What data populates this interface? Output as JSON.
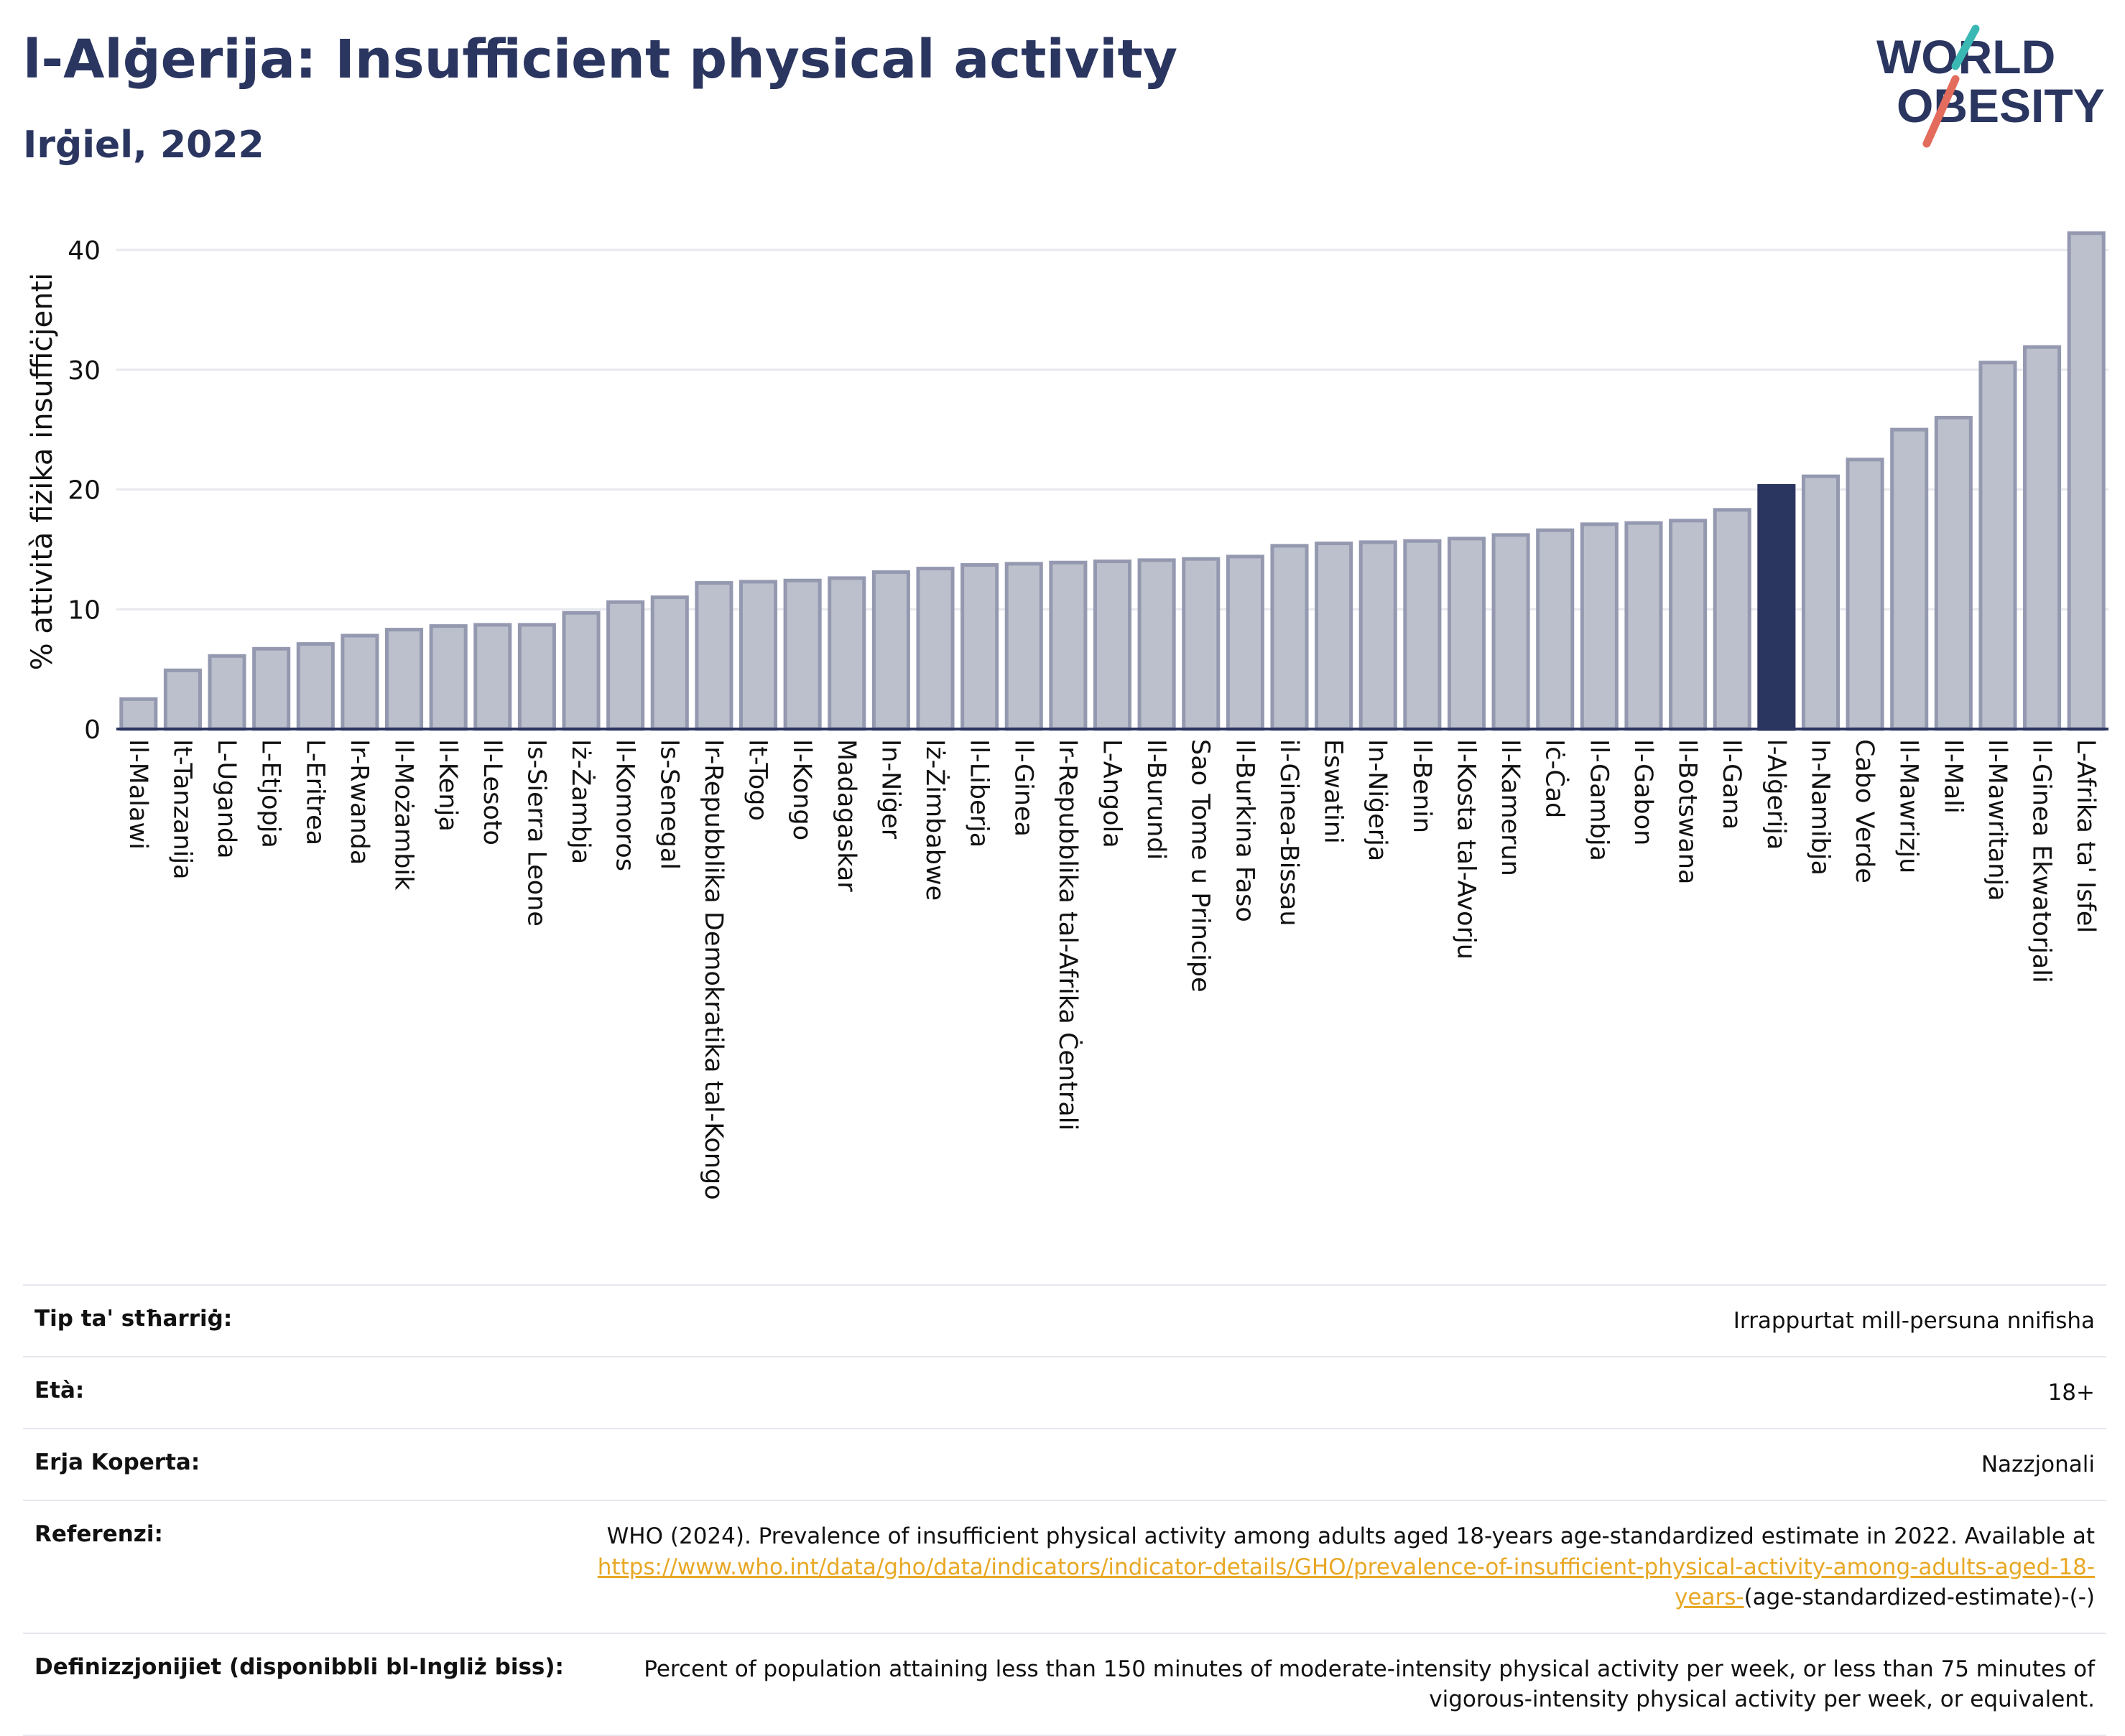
{
  "header": {
    "title": "l-Alġerija: Insufficient physical activity",
    "subtitle": "Irġiel, 2022",
    "logo_line1": "WORLD",
    "logo_line2": "OBESITY"
  },
  "chart_data": {
    "type": "bar",
    "title": "",
    "xlabel": "",
    "ylabel": "% attività fiżika insuffiċjenti",
    "ylim": [
      0,
      43
    ],
    "yticks": [
      0,
      10,
      20,
      30,
      40
    ],
    "grid": true,
    "highlight": "l-Alġerija",
    "colors": {
      "bar": "#bcc0cc",
      "bar_edge": "#9499b0",
      "highlight": "#2a3560"
    },
    "categories": [
      "Il-Malawi",
      "It-Tanzanija",
      "L-Uganda",
      "L-Etjopja",
      "L-Eritrea",
      "Ir-Rwanda",
      "Il-Możambik",
      "Il-Kenja",
      "Il-Lesoto",
      "Is-Sierra Leone",
      "Iż-Żambja",
      "Il-Komoros",
      "Is-Senegal",
      "Ir-Repubblika Demokratika tal-Kongo",
      "It-Togo",
      "Il-Kongo",
      "Madagaskar",
      "In-Niġer",
      "Iż-Żimbabwe",
      "Il-Liberja",
      "Il-Ginea",
      "Ir-Repubblika tal-Afrika Ċentrali",
      "L-Angola",
      "Il-Burundi",
      "Sao Tome u Principe",
      "Il-Burkina Faso",
      "il-Ginea-Bissau",
      "Eswatini",
      "In-Niġerja",
      "Il-Benin",
      "Il-Kosta tal-Avorju",
      "Il-Kamerun",
      "Iċ-Ċad",
      "Il-Gambja",
      "Il-Gabon",
      "Il-Botswana",
      "Il-Gana",
      "l-Alġerija",
      "In-Namibja",
      "Cabo Verde",
      "Il-Mawrizju",
      "Il-Mali",
      "Il-Mawritanja",
      "Il-Ginea Ekwatorjali",
      "L-Afrika ta' Isfel"
    ],
    "values": [
      2.5,
      4.9,
      6.1,
      6.7,
      7.1,
      7.8,
      8.3,
      8.6,
      8.7,
      8.7,
      9.7,
      10.6,
      11.0,
      12.2,
      12.3,
      12.4,
      12.6,
      13.1,
      13.4,
      13.7,
      13.8,
      13.9,
      14.0,
      14.1,
      14.2,
      14.4,
      15.3,
      15.5,
      15.6,
      15.7,
      15.9,
      16.2,
      16.6,
      17.1,
      17.2,
      17.4,
      18.3,
      20.3,
      21.1,
      22.5,
      25.0,
      26.0,
      30.6,
      31.9,
      41.4
    ]
  },
  "info": {
    "measure_label": "Tip ta' stħarriġ:",
    "measure_value": "Irrappurtat mill-persuna nnifisha",
    "age_label": "Età:",
    "age_value": "18+",
    "area_label": "Erja Koperta:",
    "area_value": "Nazzjonali",
    "ref_label": "Referenzi:",
    "ref_text": "WHO (2024). Prevalence of insufficient physical activity among adults aged 18-years age-standardized estimate in 2022. Available at",
    "ref_link": "https://www.who.int/data/gho/data/indicators/indicator-details/GHO/prevalence-of-insufficient-physical-activity-among-adults-aged-18-years-",
    "ref_tail": "(age-standardized-estimate)-(-)",
    "def_label": "Definizzjonijiet (disponibbli bl-Ingliż biss):",
    "def_value": "Percent of population attaining less than 150 minutes of moderate-intensity physical activity per week, or less than 75 minutes of vigorous-intensity physical activity per week, or equivalent."
  }
}
